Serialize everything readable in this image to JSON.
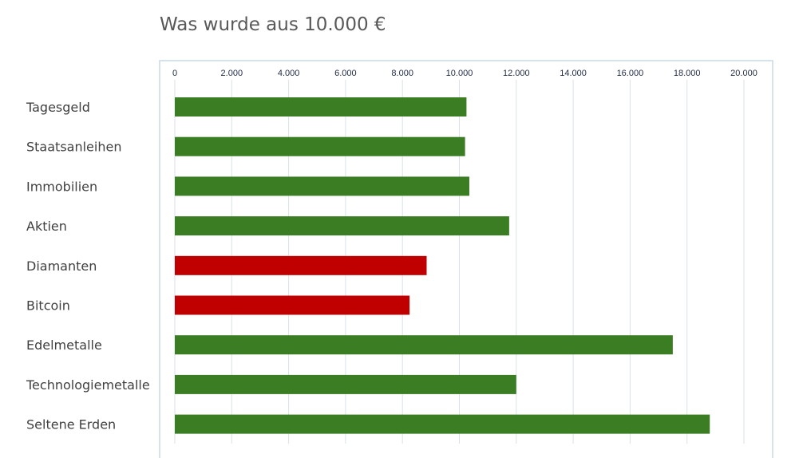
{
  "chart_data": {
    "type": "bar",
    "orientation": "horizontal",
    "title": "Was wurde aus 10.000 €",
    "xlim": [
      0,
      20000
    ],
    "x_ticks": [
      0,
      2000,
      4000,
      6000,
      8000,
      10000,
      12000,
      14000,
      16000,
      18000,
      20000
    ],
    "x_tick_labels": [
      "0",
      "2.000",
      "4.000",
      "6.000",
      "8.000",
      "10.000",
      "12.000",
      "14.000",
      "16.000",
      "18.000",
      "20.000"
    ],
    "x_axis_position": "top",
    "grid": true,
    "legend": "none",
    "categories": [
      "Tagesgeld",
      "Staatsanleihen",
      "Immobilien",
      "Aktien",
      "Diamanten",
      "Bitcoin",
      "Edelmetalle",
      "Technologiemetalle",
      "Seltene Erden"
    ],
    "values": [
      10250,
      10200,
      10350,
      11750,
      8850,
      8250,
      17500,
      12000,
      18800
    ],
    "bar_colors": [
      "#3b7d23",
      "#3b7d23",
      "#3b7d23",
      "#3b7d23",
      "#c00000",
      "#c00000",
      "#3b7d23",
      "#3b7d23",
      "#3b7d23"
    ]
  },
  "colors": {
    "positive": "#3b7d23",
    "negative": "#c00000",
    "gridline": "#d9e2ea",
    "frame": "#c9d9e6"
  }
}
